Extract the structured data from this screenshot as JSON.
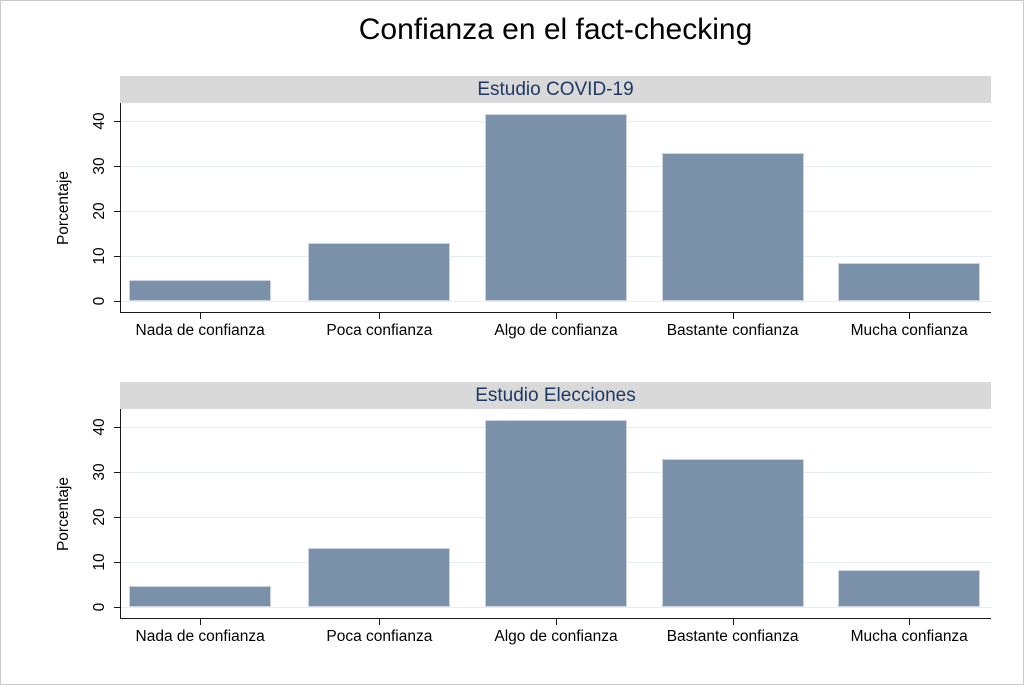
{
  "figure": {
    "title": "Confianza en el fact-checking"
  },
  "chart_data": [
    {
      "type": "bar",
      "title": "Estudio COVID-19",
      "categories": [
        "Nada de confianza",
        "Poca confianza",
        "Algo de confianza",
        "Bastante confianza",
        "Mucha confianza"
      ],
      "values": [
        4.7,
        12.9,
        41.5,
        33.0,
        8.4
      ],
      "xlabel": "",
      "ylabel": "Porcentaje",
      "ylim": [
        0,
        44
      ],
      "yticks": [
        0,
        10,
        20,
        30,
        40
      ],
      "grid": true,
      "legend": "none"
    },
    {
      "type": "bar",
      "title": "Estudio Elecciones",
      "categories": [
        "Nada de confianza",
        "Poca confianza",
        "Algo de confianza",
        "Bastante confianza",
        "Mucha confianza"
      ],
      "values": [
        4.6,
        13.1,
        41.6,
        32.8,
        8.3
      ],
      "xlabel": "",
      "ylabel": "Porcentaje",
      "ylim": [
        0,
        44
      ],
      "yticks": [
        0,
        10,
        20,
        30,
        40
      ],
      "grid": true,
      "legend": "none"
    }
  ],
  "colors": {
    "bar_fill": "#7b91a9",
    "bar_border": "#cdd4df",
    "panel_band_bg": "#d9d9d9",
    "panel_title_text": "#1f3864",
    "gridline": "#e4ecf5",
    "axis_line": "#1a1a1a",
    "text": "#000000"
  }
}
